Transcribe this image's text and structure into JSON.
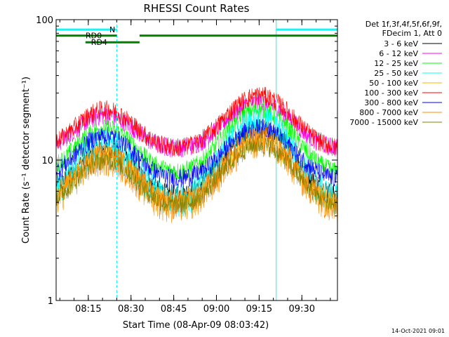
{
  "chart_data": {
    "type": "line",
    "title": "RHESSI Count Rates",
    "xlabel": "Start Time (08-Apr-09 08:03:42)",
    "ylabel": "Count Rate (s⁻¹ detector segment⁻¹)",
    "y_scale": "log",
    "ylim": [
      1,
      100
    ],
    "y_ticks": [
      "1",
      "10",
      "100"
    ],
    "xlim": [
      "08:03:42",
      "09:42:30"
    ],
    "x_ticks": [
      "08:15",
      "08:30",
      "08:45",
      "09:00",
      "09:15",
      "09:30"
    ],
    "legend_header": [
      "Det 1f,3f,4f,5f,6f,9f,",
      "FDecim 1, Att 0"
    ],
    "legend_placement": "right, outside plot",
    "series": [
      {
        "name": "3 - 6 keV",
        "color": "#000000",
        "baseline": 5.5,
        "peak1": 12,
        "peak2": 17
      },
      {
        "name": "6 - 12 keV",
        "color": "#ff00ff",
        "baseline": 12,
        "peak1": 21,
        "peak2": 26
      },
      {
        "name": "12 - 25 keV",
        "color": "#00ff00",
        "baseline": 8,
        "peak1": 17,
        "peak2": 23
      },
      {
        "name": "25 - 50 keV",
        "color": "#00ffff",
        "baseline": 5,
        "peak1": 13,
        "peak2": 19
      },
      {
        "name": "50 - 100 keV",
        "color": "#ffb000",
        "baseline": 4.8,
        "peak1": 11,
        "peak2": 14
      },
      {
        "name": "100 - 300 keV",
        "color": "#ff0000",
        "baseline": 12,
        "peak1": 23,
        "peak2": 29
      },
      {
        "name": "300 - 800 keV",
        "color": "#0000ff",
        "baseline": 7.2,
        "peak1": 15,
        "peak2": 17
      },
      {
        "name": "800 - 7000 keV",
        "color": "#ff8c00",
        "baseline": 4.6,
        "peak1": 10.5,
        "peak2": 14
      },
      {
        "name": "7000 - 15000 keV",
        "color": "#808000",
        "baseline": 4.6,
        "peak1": 10,
        "peak2": 13
      }
    ],
    "annotation_bars": [
      {
        "label": "N",
        "color": "#00ffff",
        "segments": [
          [
            "08:03:42",
            "08:25:00"
          ],
          [
            "09:21:00",
            "09:42:30"
          ]
        ],
        "level": 85
      },
      {
        "label": "RD0",
        "color": "#008000",
        "segments": [
          [
            "08:03:42",
            "08:25:00"
          ],
          [
            "08:33:00",
            "09:42:30"
          ]
        ],
        "level": 77
      },
      {
        "label": "RD4",
        "color": "#008000",
        "segments": [
          [
            "08:14:00",
            "08:33:00"
          ]
        ],
        "level": 69
      }
    ],
    "vertical_markers": [
      {
        "time": "08:25:00",
        "color": "#00ffff",
        "style": "solid top, dashed"
      },
      {
        "time": "09:21:00",
        "color": "#00ffff",
        "style": "solid"
      },
      {
        "time": "09:42:30",
        "color": "#00ffff",
        "style": "dashed"
      }
    ],
    "grid": false
  },
  "footer": {
    "timestamp": "14-Oct-2021 09:01"
  }
}
